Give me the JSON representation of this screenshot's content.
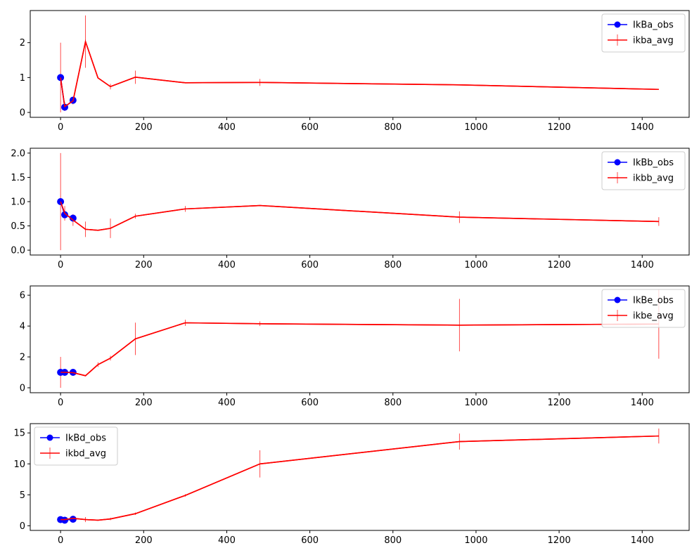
{
  "colors": {
    "obs": "#0000ff",
    "avg": "#ff0000",
    "axis": "#000000",
    "legend_edge": "#cccccc"
  },
  "chart_data": [
    {
      "type": "line",
      "xlim": [
        -73,
        1513
      ],
      "ylim": [
        -0.14,
        2.92
      ],
      "xticks": [
        0,
        200,
        400,
        600,
        800,
        1000,
        1200,
        1400
      ],
      "yticks": [
        0,
        1,
        2
      ],
      "legend_placement": "upper right",
      "grid": false,
      "series": [
        {
          "name": "IkBa_obs",
          "marker": "circle",
          "x": [
            0,
            10,
            30
          ],
          "y": [
            1.0,
            0.15,
            0.35
          ]
        },
        {
          "name": "ikba_avg",
          "marker": "errorbar",
          "x": [
            0,
            10,
            30,
            60,
            90,
            120,
            180,
            300,
            480,
            960,
            1440
          ],
          "y": [
            1.0,
            0.17,
            0.33,
            2.03,
            0.99,
            0.74,
            1.01,
            0.85,
            0.86,
            0.79,
            0.66
          ],
          "yerr": [
            1.0,
            0.13,
            0.1,
            0.75,
            0.0,
            0.08,
            0.19,
            0.0,
            0.1,
            0.0,
            0.0
          ]
        }
      ]
    },
    {
      "type": "line",
      "xlim": [
        -73,
        1513
      ],
      "ylim": [
        -0.1,
        2.1
      ],
      "xticks": [
        0,
        200,
        400,
        600,
        800,
        1000,
        1200,
        1400
      ],
      "yticks": [
        0.0,
        0.5,
        1.0,
        1.5,
        2.0
      ],
      "legend_placement": "upper right",
      "grid": false,
      "series": [
        {
          "name": "IkBb_obs",
          "marker": "circle",
          "x": [
            0,
            10,
            30
          ],
          "y": [
            1.0,
            0.73,
            0.66
          ]
        },
        {
          "name": "ikbb_avg",
          "marker": "errorbar",
          "x": [
            0,
            10,
            30,
            60,
            90,
            120,
            180,
            300,
            480,
            960,
            1440
          ],
          "y": [
            1.0,
            0.76,
            0.62,
            0.43,
            0.41,
            0.45,
            0.7,
            0.85,
            0.92,
            0.68,
            0.59
          ],
          "yerr": [
            1.0,
            0.15,
            0.12,
            0.16,
            0.0,
            0.2,
            0.05,
            0.06,
            0.0,
            0.12,
            0.09
          ]
        }
      ]
    },
    {
      "type": "line",
      "xlim": [
        -73,
        1513
      ],
      "ylim": [
        -0.32,
        6.6
      ],
      "xticks": [
        0,
        200,
        400,
        600,
        800,
        1000,
        1200,
        1400
      ],
      "yticks": [
        0,
        2,
        4,
        6
      ],
      "legend_placement": "upper right",
      "grid": false,
      "series": [
        {
          "name": "IkBe_obs",
          "marker": "circle",
          "x": [
            0,
            10,
            30
          ],
          "y": [
            1.0,
            1.0,
            1.0
          ]
        },
        {
          "name": "ikbe_avg",
          "marker": "errorbar",
          "x": [
            0,
            10,
            30,
            60,
            90,
            120,
            180,
            300,
            480,
            960,
            1440
          ],
          "y": [
            1.0,
            1.0,
            0.98,
            0.78,
            1.5,
            1.92,
            3.17,
            4.21,
            4.15,
            4.06,
            4.13
          ],
          "yerr": [
            1.0,
            0.0,
            0.0,
            0.0,
            0.15,
            0.15,
            1.05,
            0.2,
            0.15,
            1.7,
            2.25
          ]
        }
      ]
    },
    {
      "type": "line",
      "xlim": [
        -73,
        1513
      ],
      "ylim": [
        -0.75,
        16.5
      ],
      "xticks": [
        0,
        200,
        400,
        600,
        800,
        1000,
        1200,
        1400
      ],
      "yticks": [
        0,
        5,
        10,
        15
      ],
      "legend_placement": "upper left",
      "grid": false,
      "series": [
        {
          "name": "IkBd_obs",
          "marker": "circle",
          "x": [
            0,
            10,
            30
          ],
          "y": [
            1.0,
            0.9,
            1.05
          ]
        },
        {
          "name": "ikbd_avg",
          "marker": "errorbar",
          "x": [
            0,
            10,
            30,
            60,
            90,
            120,
            180,
            300,
            480,
            960,
            1440
          ],
          "y": [
            1.0,
            1.0,
            1.2,
            1.0,
            0.9,
            1.1,
            1.95,
            4.9,
            10.0,
            13.6,
            14.5
          ],
          "yerr": [
            0.5,
            0.2,
            0.3,
            0.4,
            0.0,
            0.2,
            0.2,
            0.2,
            2.2,
            1.3,
            1.2
          ]
        }
      ]
    }
  ]
}
